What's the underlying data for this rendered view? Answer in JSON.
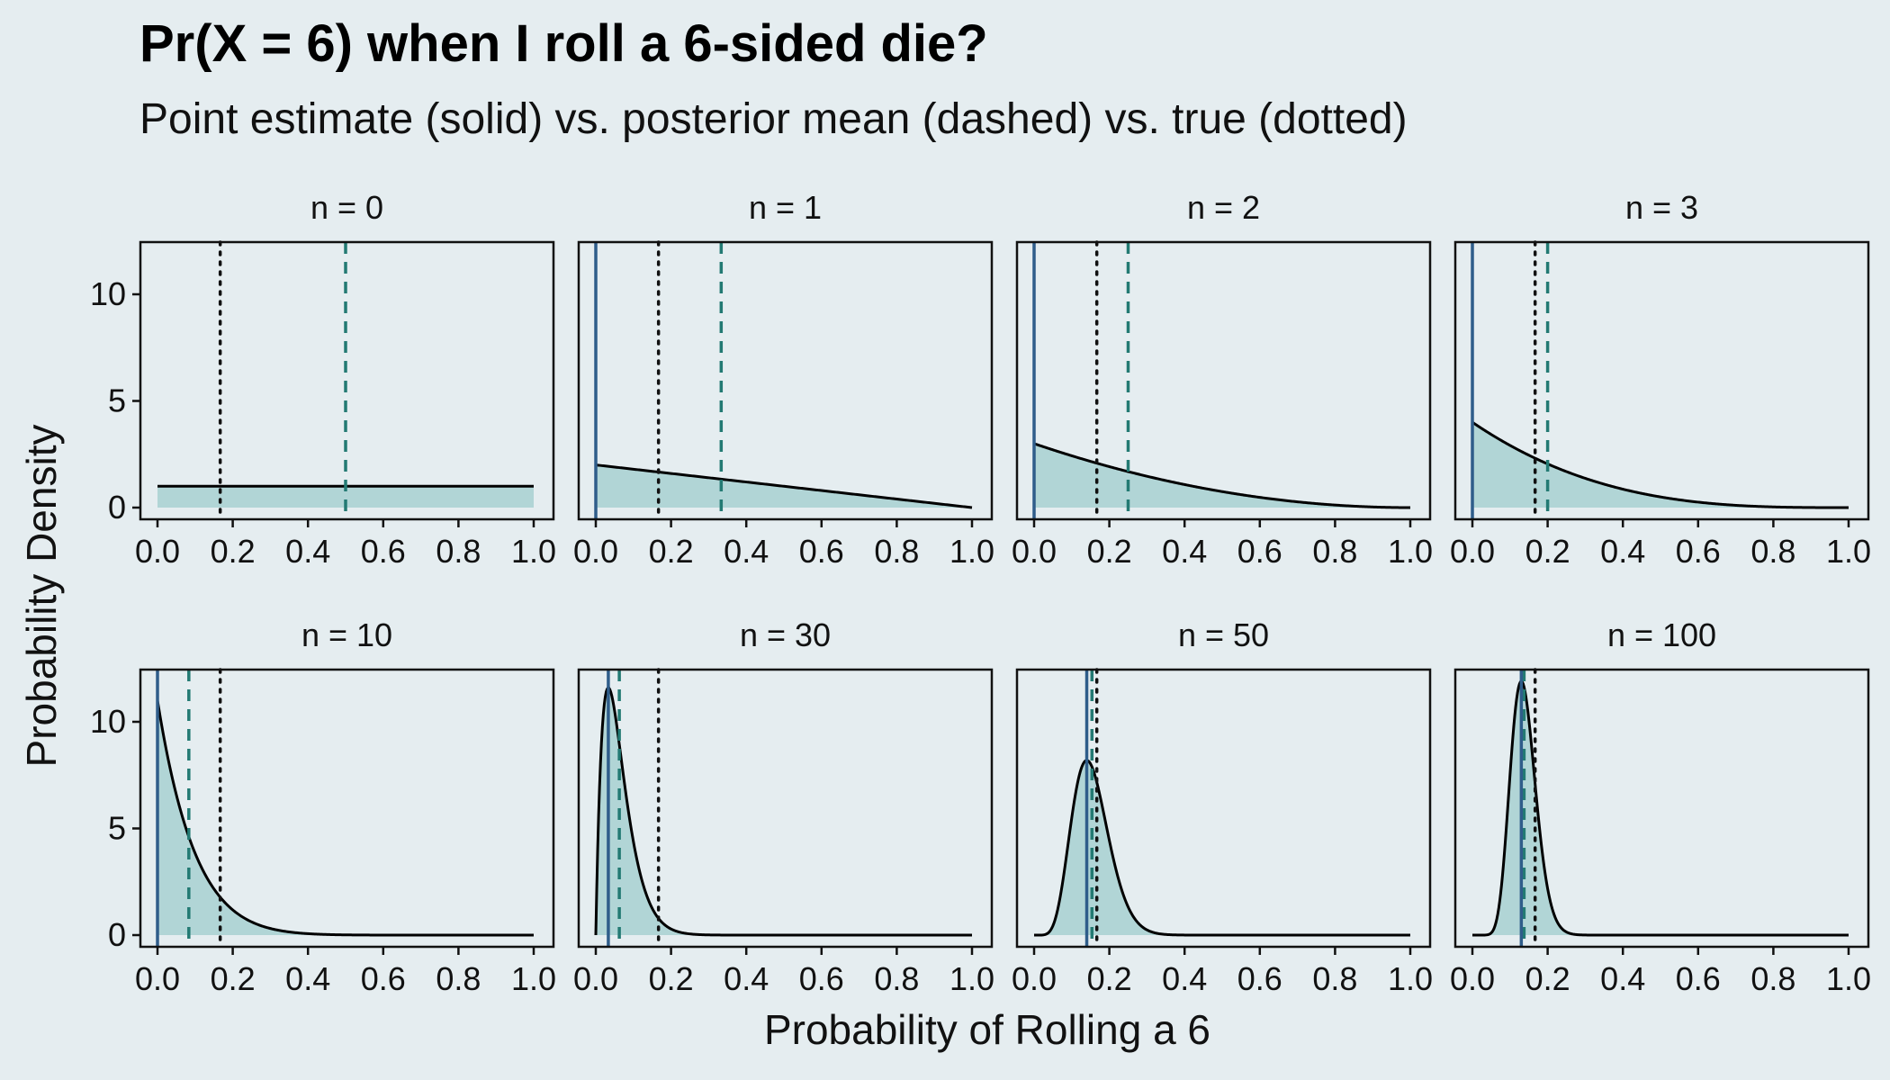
{
  "chart_data": {
    "type": "area",
    "title": "Pr(X = 6) when I roll a 6-sided die?",
    "subtitle": "Point estimate (solid) vs. posterior mean (dashed) vs. true (dotted)",
    "xlabel": "Probability of Rolling a 6",
    "ylabel": "Probability Density",
    "xlim": [
      0,
      1
    ],
    "ylim": [
      0,
      12
    ],
    "x_ticks": [
      "0.0",
      "0.2",
      "0.4",
      "0.6",
      "0.8",
      "1.0"
    ],
    "y_ticks": [
      "0",
      "5",
      "10"
    ],
    "true_value": 0.1667,
    "colors": {
      "background": "#e5edf0",
      "fill": "#b1d5d6",
      "curve": "#000000",
      "point_estimate": "#2f5d8a",
      "posterior_mean": "#237a73",
      "true_value": "#111111"
    },
    "panels": [
      {
        "label": "n = 0",
        "alpha": 1,
        "beta": 1,
        "point_estimate": null,
        "posterior_mean": 0.5
      },
      {
        "label": "n = 1",
        "alpha": 1,
        "beta": 2,
        "point_estimate": 0.0,
        "posterior_mean": 0.3333
      },
      {
        "label": "n = 2",
        "alpha": 1,
        "beta": 3,
        "point_estimate": 0.0,
        "posterior_mean": 0.25
      },
      {
        "label": "n = 3",
        "alpha": 1,
        "beta": 4,
        "point_estimate": 0.0,
        "posterior_mean": 0.2
      },
      {
        "label": "n = 10",
        "alpha": 1,
        "beta": 11,
        "point_estimate": 0.0,
        "posterior_mean": 0.0833
      },
      {
        "label": "n = 30",
        "alpha": 2,
        "beta": 30,
        "point_estimate": 0.0333,
        "posterior_mean": 0.0625
      },
      {
        "label": "n = 50",
        "alpha": 8,
        "beta": 44,
        "point_estimate": 0.14,
        "posterior_mean": 0.1538
      },
      {
        "label": "n = 100",
        "alpha": 14,
        "beta": 88,
        "point_estimate": 0.13,
        "posterior_mean": 0.1373
      }
    ]
  }
}
